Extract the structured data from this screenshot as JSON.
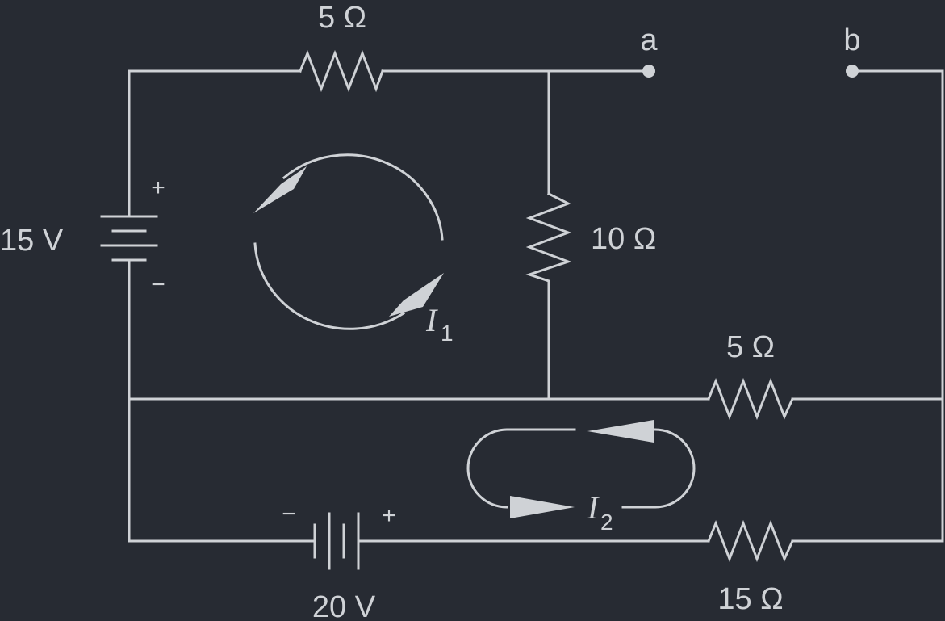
{
  "diagram": {
    "resistors": {
      "top": "5 Ω",
      "middle": "10 Ω",
      "right_upper": "5 Ω",
      "right_lower": "15 Ω"
    },
    "sources": {
      "left": {
        "label": "15 V",
        "plus": "+",
        "minus": "−"
      },
      "bottom": {
        "label": "20 V",
        "plus": "+",
        "minus": "−"
      }
    },
    "terminals": {
      "a": "a",
      "b": "b"
    },
    "loop_currents": {
      "i1": {
        "symbol": "I",
        "subscript": "1"
      },
      "i2": {
        "symbol": "I",
        "subscript": "2"
      }
    }
  },
  "colors": {
    "background": "#272b33",
    "ink": "#cfd2d6"
  }
}
